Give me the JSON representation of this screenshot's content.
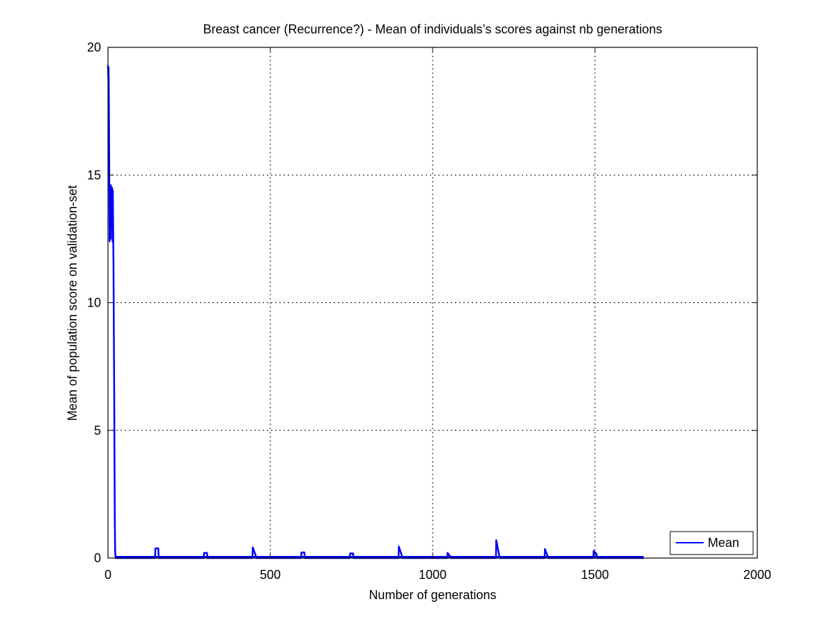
{
  "chart_data": {
    "type": "line",
    "title": "Breast cancer (Recurrence?) - Mean of individuals’s scores against nb generations",
    "xlabel": "Number of generations",
    "ylabel": "Mean of population score on validation-set",
    "xlim": [
      0,
      2000
    ],
    "ylim": [
      0,
      20
    ],
    "xticks": [
      0,
      500,
      1000,
      1500,
      2000
    ],
    "yticks": [
      0,
      5,
      10,
      15,
      20
    ],
    "xtick_labels": [
      "0",
      "500",
      "1000",
      "1500",
      "2000"
    ],
    "ytick_labels": [
      "0",
      "5",
      "10",
      "15",
      "20"
    ],
    "grid": true,
    "legend_position": "bottom-right",
    "series": [
      {
        "name": "Mean",
        "color": "#0000ff",
        "x": [
          0,
          1,
          2,
          3,
          4,
          5,
          6,
          7,
          8,
          9,
          10,
          11,
          12,
          13,
          14,
          15,
          16,
          17,
          18,
          19,
          20,
          21,
          22,
          23,
          25,
          27,
          145,
          146,
          155,
          156,
          295,
          296,
          305,
          306,
          445,
          446,
          455,
          456,
          595,
          596,
          605,
          606,
          745,
          746,
          755,
          756,
          895,
          896,
          905,
          906,
          1045,
          1046,
          1055,
          1056,
          1195,
          1196,
          1205,
          1206,
          1345,
          1346,
          1355,
          1356,
          1495,
          1496,
          1505,
          1506,
          1650
        ],
        "y": [
          19.3,
          18.8,
          19.2,
          17.5,
          15.0,
          12.4,
          14.6,
          13.0,
          12.5,
          14.6,
          12.9,
          14.4,
          13.3,
          14.5,
          12.4,
          14.4,
          12.8,
          11.5,
          9.0,
          7.0,
          4.0,
          1.5,
          0.3,
          0.05,
          0.0,
          0.0,
          0.0,
          0.38,
          0.38,
          0.0,
          0.0,
          0.2,
          0.2,
          0.0,
          0.0,
          0.42,
          0.1,
          0.0,
          0.0,
          0.22,
          0.22,
          0.0,
          0.0,
          0.18,
          0.18,
          0.0,
          0.0,
          0.45,
          0.1,
          0.0,
          0.0,
          0.2,
          0.05,
          0.0,
          0.0,
          0.7,
          0.1,
          0.0,
          0.0,
          0.35,
          0.05,
          0.0,
          0.0,
          0.28,
          0.15,
          0.0,
          0.0
        ]
      }
    ]
  },
  "colors": {
    "series": "#0000ff",
    "axes": "#000000",
    "grid": "#000000",
    "background": "#ffffff"
  }
}
